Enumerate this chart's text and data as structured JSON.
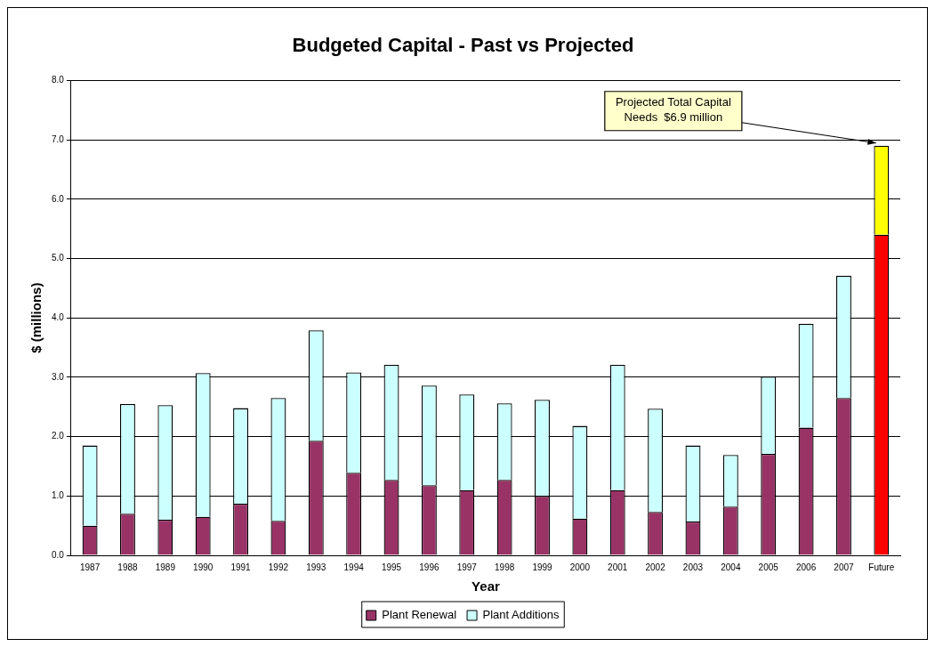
{
  "chart_data": {
    "type": "bar",
    "title": "Budgeted Capital - Past vs Projected",
    "xlabel": "Year",
    "ylabel": "$ (millions)",
    "categories": [
      "1987",
      "1988",
      "1989",
      "1990",
      "1991",
      "1992",
      "1993",
      "1994",
      "1995",
      "1996",
      "1997",
      "1998",
      "1999",
      "2000",
      "2001",
      "2002",
      "2003",
      "2004",
      "2005",
      "2006",
      "2007",
      "Future"
    ],
    "stacked": true,
    "series": [
      {
        "name": "Plant Renewal",
        "color": "#993366",
        "colors": [
          "#993366",
          "#993366",
          "#993366",
          "#993366",
          "#993366",
          "#993366",
          "#993366",
          "#993366",
          "#993366",
          "#993366",
          "#993366",
          "#993366",
          "#993366",
          "#993366",
          "#993366",
          "#993366",
          "#993366",
          "#993366",
          "#993366",
          "#993366",
          "#993366",
          "#ff0000"
        ],
        "values": [
          0.5,
          0.7,
          0.6,
          0.65,
          0.87,
          0.58,
          1.93,
          1.39,
          1.27,
          1.18,
          1.1,
          1.27,
          1.0,
          0.62,
          1.1,
          0.73,
          0.57,
          0.82,
          1.71,
          2.15,
          2.65,
          5.4
        ]
      },
      {
        "name": "Plant Additions",
        "color": "#ccffff",
        "colors": [
          "#ccffff",
          "#ccffff",
          "#ccffff",
          "#ccffff",
          "#ccffff",
          "#ccffff",
          "#ccffff",
          "#ccffff",
          "#ccffff",
          "#ccffff",
          "#ccffff",
          "#ccffff",
          "#ccffff",
          "#ccffff",
          "#ccffff",
          "#ccffff",
          "#ccffff",
          "#ccffff",
          "#ccffff",
          "#ccffff",
          "#ccffff",
          "#ffff00"
        ],
        "values": [
          1.35,
          1.85,
          1.93,
          2.42,
          1.61,
          2.07,
          1.86,
          1.69,
          1.94,
          1.68,
          1.61,
          1.29,
          1.62,
          1.56,
          2.11,
          1.74,
          1.28,
          0.87,
          1.3,
          1.75,
          2.06,
          1.5
        ]
      }
    ],
    "ylim": [
      0,
      8
    ],
    "yticks": [
      {
        "value": 0,
        "label": "0.0"
      },
      {
        "value": 1,
        "label": "1.0"
      },
      {
        "value": 2,
        "label": "2.0"
      },
      {
        "value": 3,
        "label": "3.0"
      },
      {
        "value": 4,
        "label": "4.0"
      },
      {
        "value": 5,
        "label": "5.0"
      },
      {
        "value": 6,
        "label": "6.0"
      },
      {
        "value": 7,
        "label": "7.0"
      },
      {
        "value": 8,
        "label": "8.0"
      }
    ],
    "grid": "y",
    "legend": "bottom",
    "annotations": [
      {
        "text": "Projected Total Capital\nNeeds  $6.9 million",
        "x": "Future",
        "y": 6.9
      }
    ]
  }
}
